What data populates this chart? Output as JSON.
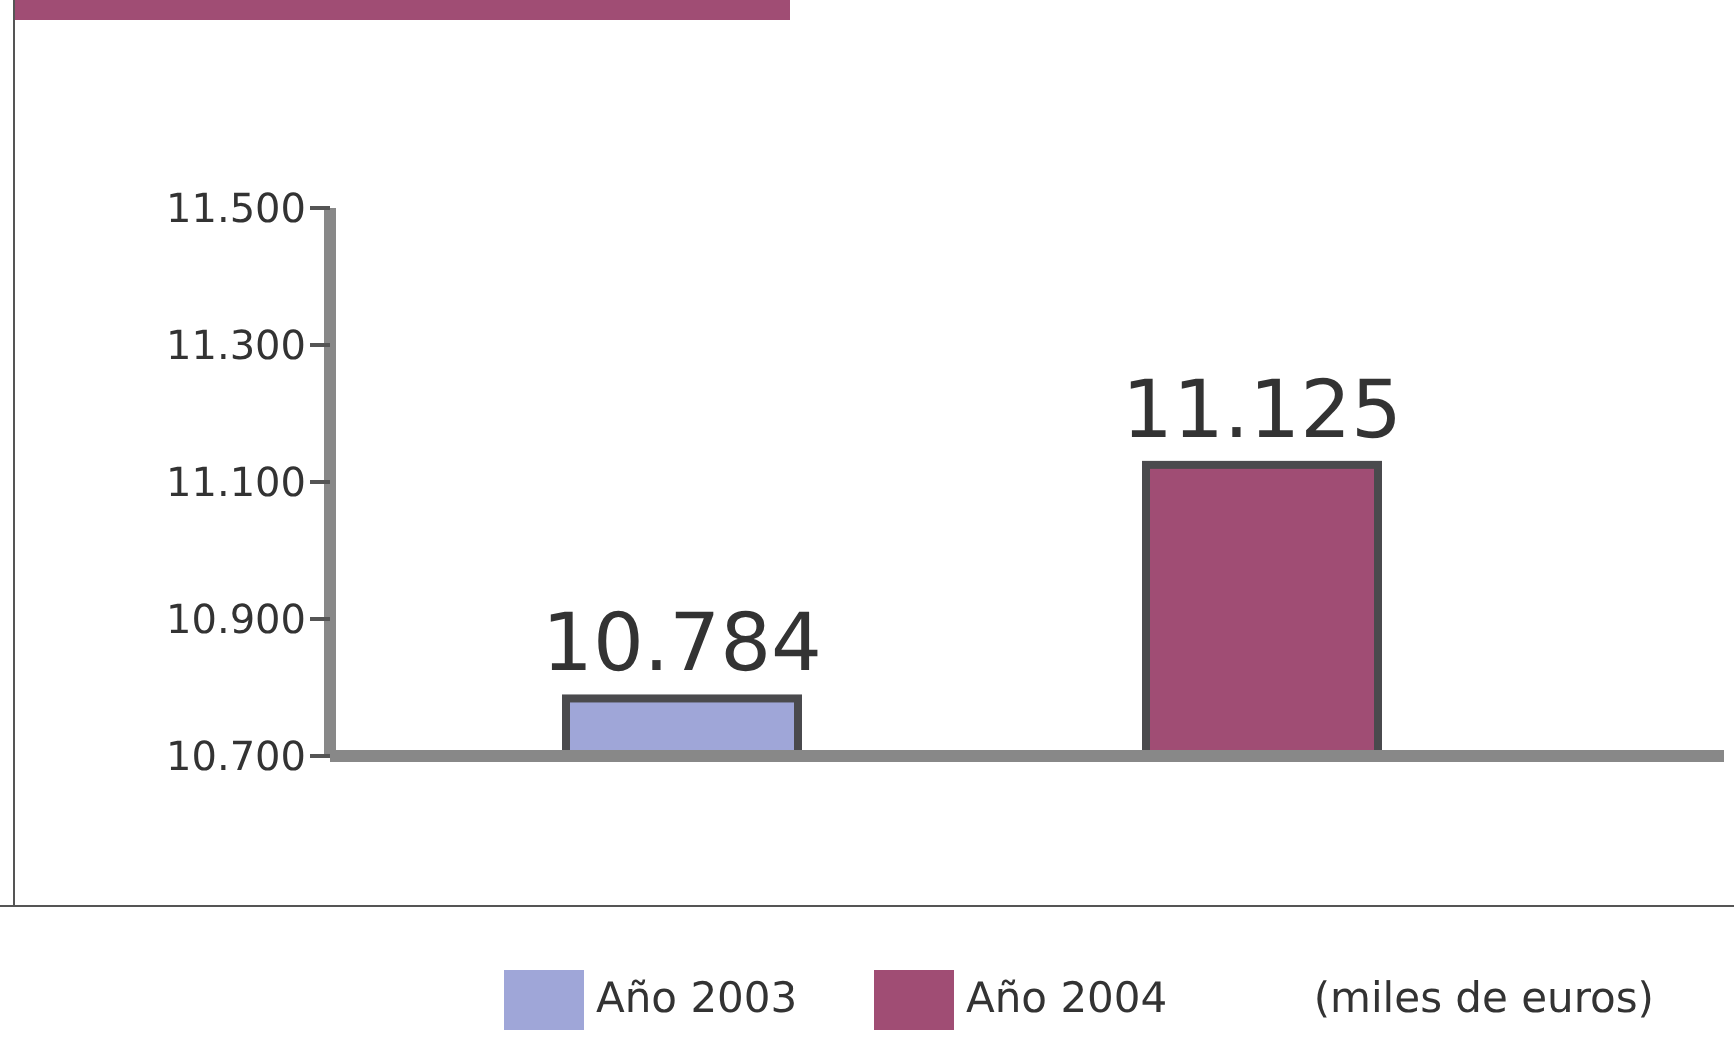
{
  "chart_data": {
    "type": "bar",
    "categories": [
      null,
      null
    ],
    "series": [
      {
        "name": "Año 2003",
        "color": "#9fa6d8",
        "values": [
          10784,
          null
        ],
        "value_labels": [
          "10.784",
          null
        ]
      },
      {
        "name": "Año 2004",
        "color": "#a04d74",
        "values": [
          null,
          11125
        ],
        "value_labels": [
          null,
          "11.125"
        ]
      }
    ],
    "ylim": [
      10700,
      11500
    ],
    "yticks": [
      {
        "value": 10700,
        "label": "10.700"
      },
      {
        "value": 10900,
        "label": "10.900"
      },
      {
        "value": 11100,
        "label": "11.100"
      },
      {
        "value": 11300,
        "label": "11.300"
      },
      {
        "value": 11500,
        "label": "11.500"
      }
    ],
    "legend": "bottom",
    "grid": false,
    "annotations": [
      "(miles de euros)"
    ]
  }
}
